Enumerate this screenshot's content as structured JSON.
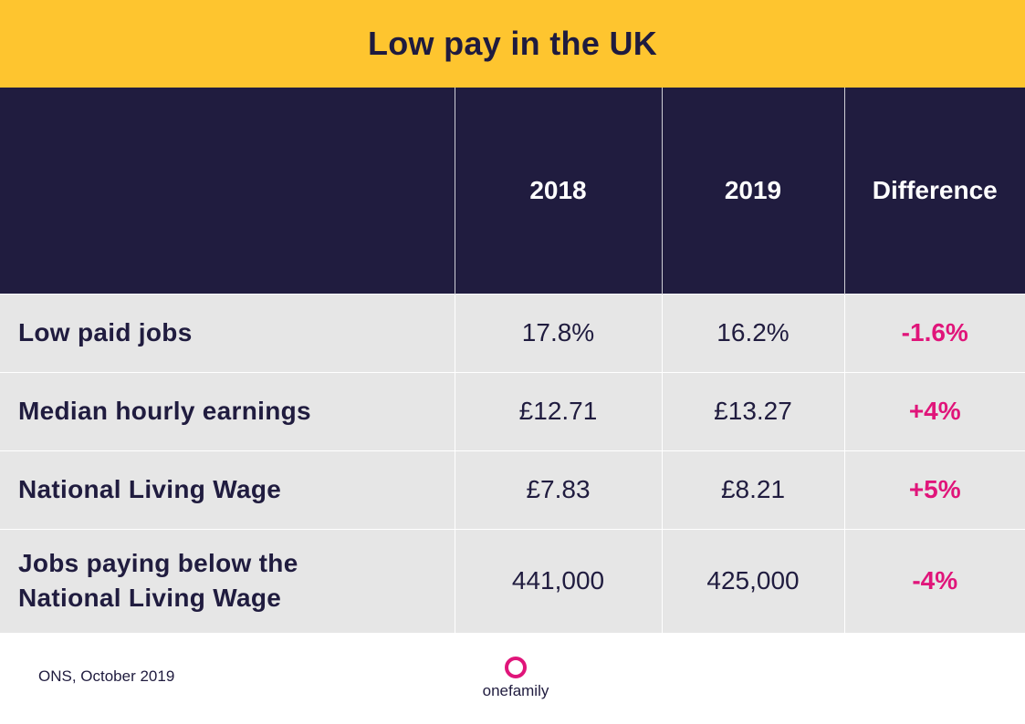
{
  "title": "Low pay in the UK",
  "colors": {
    "header_bar": "#fec52f",
    "table_header": "#201c3f",
    "row_background": "#e6e6e6",
    "difference_text": "#e0157a"
  },
  "chart_data": {
    "type": "table",
    "title": "Low pay in the UK",
    "columns": [
      "",
      "2018",
      "2019",
      "Difference"
    ],
    "rows": [
      {
        "label": "Low paid jobs",
        "y2018": "17.8%",
        "y2019": "16.2%",
        "difference": "-1.6%"
      },
      {
        "label": "Median hourly earnings",
        "y2018": "£12.71",
        "y2019": "£13.27",
        "difference": "+4%"
      },
      {
        "label": "National Living Wage",
        "y2018": "£7.83",
        "y2019": "£8.21",
        "difference": "+5%"
      },
      {
        "label_line1": "Jobs paying below the",
        "label_line2": "National Living Wage",
        "y2018": "441,000",
        "y2019": "425,000",
        "difference": "-4%"
      }
    ]
  },
  "footer": {
    "source": "ONS, October 2019",
    "logo_text": "onefamily",
    "logo_icon": "ring-icon"
  }
}
